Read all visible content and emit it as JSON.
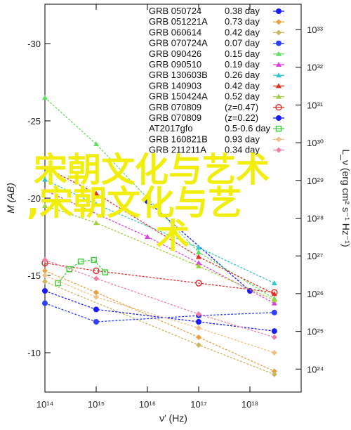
{
  "chart_data": {
    "type": "line",
    "title": "",
    "xlabel": "ν′ (Hz)",
    "ylabel": "M (AB)",
    "y2label": "L_ν (erg cm² s⁻¹ Hz⁻¹)",
    "xscale": "log",
    "xlim": [
      100000000000000.0,
      1e+19
    ],
    "ylim": [
      -8,
      -32
    ],
    "y2lim": [
      1e+23,
      1e+34
    ],
    "x_ticks": [
      "10¹⁴",
      "10¹⁵",
      "10¹⁶",
      "10¹⁷",
      "10¹⁸"
    ],
    "y_ticks": [
      "-30",
      "-25",
      "-20",
      "-15",
      "-10"
    ],
    "y2_ticks": [
      "10³³",
      "10³²",
      "10³¹",
      "10³⁰",
      "10²⁹",
      "10²⁸",
      "10²⁷",
      "10²⁶",
      "10²⁵",
      "10²⁴"
    ],
    "grid": false,
    "legend_position": "top-right",
    "series": [
      {
        "name": "GRB 050724",
        "value": "0.38 day",
        "color": "#1a1aff",
        "marker": "dot",
        "x": [
          1e+16,
          1e+18
        ],
        "y": [
          -19.8,
          -14.0
        ]
      },
      {
        "name": "GRB 051221A",
        "value": "0.73 day",
        "color": "#e8a040",
        "marker": "diamond",
        "x": [
          100000000000000.0,
          1000000000000000.0,
          1e+17,
          3e+18
        ],
        "y": [
          -15.3,
          -13.9,
          -11.0,
          -8.8
        ]
      },
      {
        "name": "GRB 060614",
        "value": "0.42 day",
        "color": "#c8b860",
        "marker": "diamond",
        "x": [
          100000000000000.0,
          1e+17,
          3e+18
        ],
        "y": [
          -14.6,
          -10.5,
          -8.6
        ]
      },
      {
        "name": "GRB 070724A",
        "value": "0.07 day",
        "color": "#3040ff",
        "marker": "dot",
        "x": [
          100000000000000.0,
          1000000000000000.0,
          1e+17,
          3e+18
        ],
        "y": [
          -13.2,
          -12.0,
          -12.4,
          -12.6
        ]
      },
      {
        "name": "GRB 090426",
        "value": "0.15 day",
        "color": "#60e060",
        "marker": "triangle",
        "x": [
          100000000000000.0,
          1000000000000000.0,
          1e+17,
          3e+18
        ],
        "y": [
          -26.5,
          -23.5,
          -16.5,
          -13.5
        ]
      },
      {
        "name": "GRB 090510",
        "value": "0.19 day",
        "color": "#e040e0",
        "marker": "triangle",
        "x": [
          100000000000000.0,
          1e+16,
          1e+17,
          3e+18
        ],
        "y": [
          -20.5,
          -17.5,
          -15.8,
          -13.2
        ]
      },
      {
        "name": "GRB 130603B",
        "value": "0.26 day",
        "color": "#30c8c8",
        "marker": "triangle",
        "x": [
          100000000000000.0,
          1000000000000000.0,
          1e+17,
          3e+18
        ],
        "y": [
          -21.2,
          -19.6,
          -16.8,
          -14.5
        ]
      },
      {
        "name": "GRB 140903",
        "value": "0.42 day",
        "color": "#e03020",
        "marker": "triangle",
        "x": [
          100000000000000.0,
          1000000000000000.0,
          1e+17,
          3e+18
        ],
        "y": [
          -22.0,
          -20.3,
          -16.2,
          -13.8
        ]
      },
      {
        "name": "GRB 150424A",
        "value": "0.52 day",
        "color": "#a0d040",
        "marker": "triangle",
        "x": [
          100000000000000.0,
          1000000000000000.0,
          1e+17,
          3e+18
        ],
        "y": [
          -19.5,
          -18.4,
          -15.6,
          -13.4
        ]
      },
      {
        "name": "GRB 070809",
        "value": "(z=0.47)",
        "color": "#e03030",
        "marker": "open-circle",
        "x": [
          100000000000000.0,
          1000000000000000.0,
          1e+17,
          3e+18
        ],
        "y": [
          -15.8,
          -15.3,
          -14.5,
          -13.9
        ]
      },
      {
        "name": "GRB 070809",
        "value": "(z=0.22)",
        "color": "#1a1aff",
        "marker": "dot",
        "x": [
          100000000000000.0,
          1000000000000000.0,
          1e+17,
          3e+18
        ],
        "y": [
          -14.0,
          -12.8,
          -12.0,
          -11.4
        ]
      },
      {
        "name": "AT2017gfo",
        "value": "0.5-0.6 day",
        "color": "#40d040",
        "marker": "open-square",
        "x": [
          180000000000000.0,
          300000000000000.0,
          500000000000000.0,
          900000000000000.0,
          1500000000000000.0
        ],
        "y": [
          -14.5,
          -15.4,
          -15.9,
          -16.0,
          -15.2
        ]
      },
      {
        "name": "GRB 160821B",
        "value": "0.93 day",
        "color": "#f0c080",
        "marker": "diamond",
        "x": [
          100000000000000.0,
          1000000000000000.0,
          1e+17,
          3e+18
        ],
        "y": [
          -15.0,
          -13.6,
          -11.6,
          -10.0
        ]
      },
      {
        "name": "GRB 211211A",
        "value": "0.34 day",
        "color": "#f080a0",
        "marker": "diamond",
        "x": [
          100000000000000.0,
          1000000000000000.0,
          1e+17,
          3e+18
        ],
        "y": [
          -16.0,
          -14.8,
          -12.5,
          -11.0
        ]
      }
    ],
    "annotations": []
  },
  "overlay": {
    "line1": "宋朝文化与艺术",
    "line2": ",宋朝文化与艺",
    "line3": "术"
  }
}
